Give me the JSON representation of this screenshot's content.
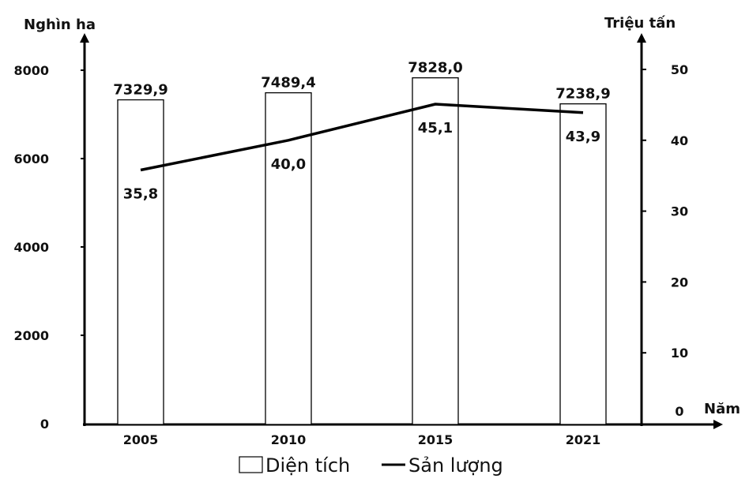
{
  "chart_data": {
    "type": "bar+line",
    "categories": [
      "2005",
      "2010",
      "2015",
      "2021"
    ],
    "series": [
      {
        "name": "Diện tích",
        "type": "bar",
        "axis": "left",
        "values": [
          7329.9,
          7489.4,
          7828.0,
          7238.9
        ],
        "labels": [
          "7329,9",
          "7489,4",
          "7828,0",
          "7238,9"
        ]
      },
      {
        "name": "Sản lượng",
        "type": "line",
        "axis": "right",
        "values": [
          35.8,
          40.0,
          45.1,
          43.9
        ],
        "labels": [
          "35,8",
          "40,0",
          "45,1",
          "43,9"
        ]
      }
    ],
    "left_axis": {
      "label": "Nghìn ha",
      "ylim": [
        0,
        8000
      ],
      "ticks": [
        "0",
        "2000",
        "4000",
        "6000",
        "8000"
      ]
    },
    "right_axis": {
      "label": "Triệu tấn",
      "ylim": [
        0,
        50
      ],
      "ticks": [
        "0",
        "10",
        "20",
        "30",
        "40",
        "50"
      ]
    },
    "xlabel": "Năm",
    "legend": {
      "placement": "bottom",
      "entries": [
        "Diện tích",
        "Sản lượng"
      ]
    },
    "grid": false
  }
}
